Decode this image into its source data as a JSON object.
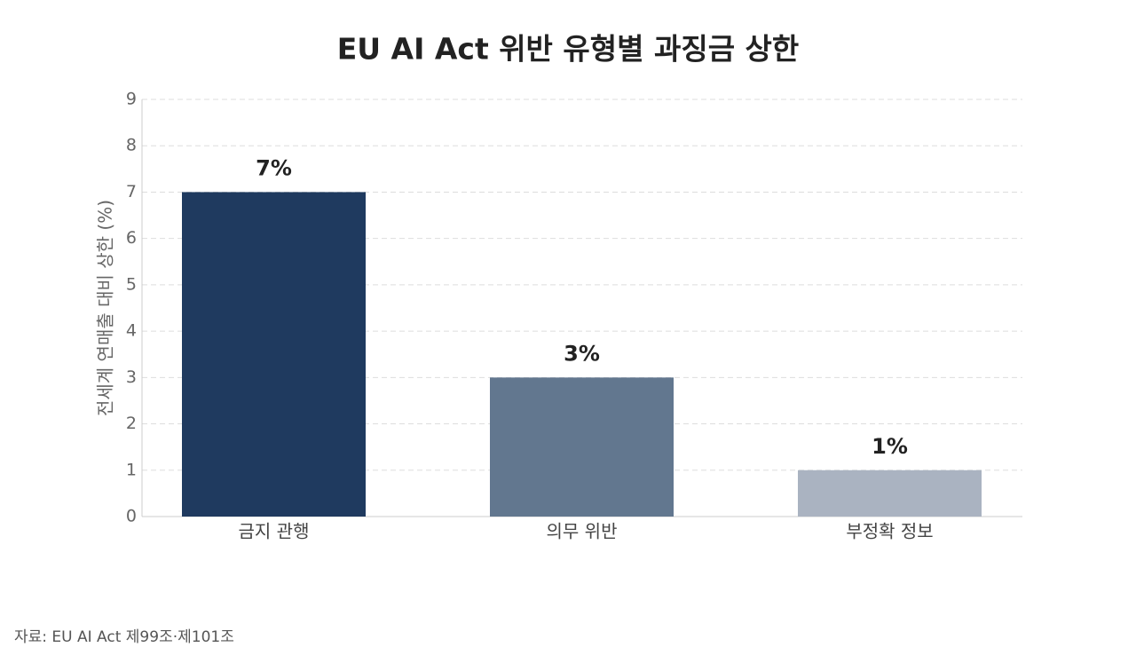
{
  "chart_data": {
    "type": "bar",
    "title": "EU AI Act 위반 유형별 과징금 상한",
    "y_label": "전세계 연매출 대비 상한 (%)",
    "categories": [
      "금지 관행",
      "의무 위반",
      "부정확 정보"
    ],
    "values": [
      7,
      3,
      1
    ],
    "value_labels": [
      "7%",
      "3%",
      "1%"
    ],
    "colors": [
      "#1f3a5f",
      "#62778f",
      "#aab3c1"
    ],
    "ylim": [
      0,
      9
    ],
    "yticks": [
      0,
      1,
      2,
      3,
      4,
      5,
      6,
      7,
      8,
      9
    ],
    "grid": true,
    "source": "자료: EU AI Act 제99조·제101조"
  }
}
